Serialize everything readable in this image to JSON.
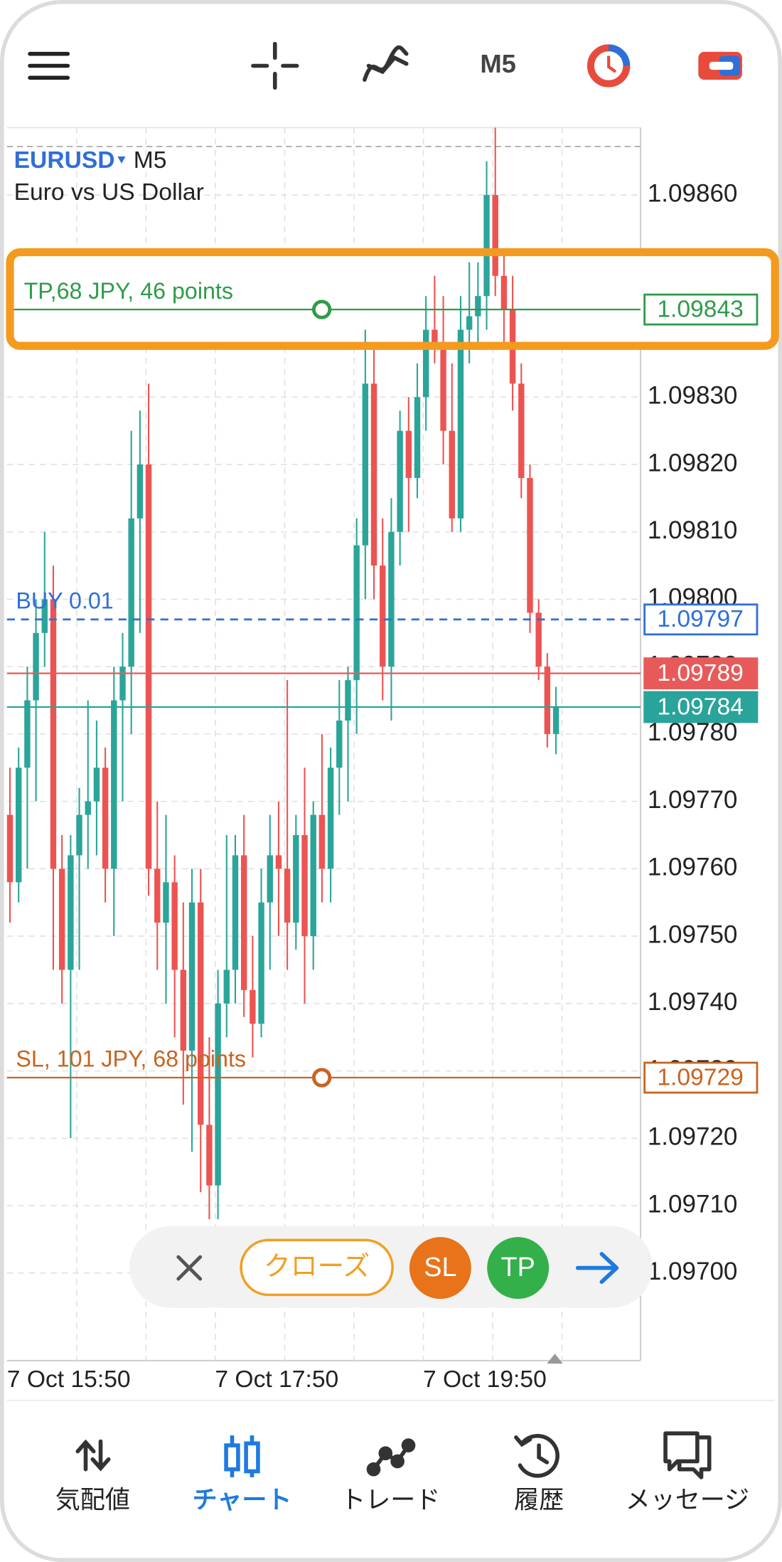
{
  "toolbar": {
    "timeframe": "M5"
  },
  "chart_data": {
    "type": "candlestick",
    "symbol": "EURUSD",
    "timeframe": "M5",
    "description": "Euro vs US Dollar",
    "categories": [
      "7 Oct 15:50",
      null,
      null,
      null,
      null,
      null,
      null,
      null,
      null,
      null,
      null,
      null,
      null,
      null,
      null,
      null,
      null,
      null,
      null,
      null,
      null,
      null,
      null,
      null,
      "7 Oct 17:50",
      null,
      null,
      null,
      null,
      null,
      null,
      null,
      null,
      null,
      null,
      null,
      null,
      null,
      null,
      null,
      null,
      null,
      null,
      null,
      null,
      null,
      null,
      null,
      "7 Oct 19:50",
      null,
      null,
      null,
      null,
      null,
      null,
      null,
      null,
      null,
      null,
      null,
      null,
      null,
      null,
      null
    ],
    "open": [
      1.09768,
      1.09758,
      1.09775,
      1.09785,
      1.09795,
      1.098,
      1.0976,
      1.09745,
      1.09762,
      1.09768,
      1.0977,
      1.09775,
      1.0976,
      1.09785,
      1.0979,
      1.09812,
      1.0982,
      1.0976,
      1.09752,
      1.09758,
      1.09745,
      1.09733,
      1.09755,
      1.09722,
      1.09713,
      1.0974,
      1.09745,
      1.09762,
      1.09742,
      1.09737,
      1.09755,
      1.09762,
      1.0976,
      1.09752,
      1.09765,
      1.0975,
      1.09768,
      1.0976,
      1.09775,
      1.09782,
      1.09788,
      1.09808,
      1.09832,
      1.09805,
      1.0979,
      1.0981,
      1.09825,
      1.09818,
      1.0983,
      1.0984,
      1.09838,
      1.09825,
      1.09812,
      1.0984,
      1.09842,
      1.09845,
      1.0986,
      1.09848,
      1.09843,
      1.09832,
      1.09818,
      1.09798,
      1.0979,
      1.0978
    ],
    "high": [
      1.09775,
      1.09778,
      1.0979,
      1.098,
      1.0981,
      1.09805,
      1.09765,
      1.09765,
      1.09772,
      1.09785,
      1.09782,
      1.09778,
      1.0979,
      1.09795,
      1.09825,
      1.09828,
      1.09832,
      1.0977,
      1.09768,
      1.09762,
      1.09755,
      1.0976,
      1.0976,
      1.09735,
      1.09745,
      1.09765,
      1.09765,
      1.09768,
      1.0975,
      1.0976,
      1.09768,
      1.0977,
      1.09788,
      1.09768,
      1.09775,
      1.0977,
      1.0978,
      1.09778,
      1.09788,
      1.0979,
      1.09812,
      1.0984,
      1.09838,
      1.09812,
      1.09815,
      1.09828,
      1.0983,
      1.09835,
      1.09845,
      1.09848,
      1.09845,
      1.09835,
      1.09845,
      1.0985,
      1.0985,
      1.09865,
      1.0987,
      1.09852,
      1.09848,
      1.09835,
      1.0982,
      1.098,
      1.09792,
      1.09787
    ],
    "low": [
      1.09752,
      1.09755,
      1.0976,
      1.0977,
      1.0979,
      1.09745,
      1.0974,
      1.0972,
      1.09745,
      1.0976,
      1.09762,
      1.09755,
      1.0975,
      1.0977,
      1.0978,
      1.09795,
      1.09756,
      1.09745,
      1.0974,
      1.09735,
      1.09725,
      1.09718,
      1.09712,
      1.09708,
      1.09708,
      1.09735,
      1.0974,
      1.09738,
      1.09732,
      1.09735,
      1.09745,
      1.0975,
      1.09745,
      1.09748,
      1.0974,
      1.09745,
      1.09755,
      1.09755,
      1.09768,
      1.0977,
      1.0978,
      1.098,
      1.098,
      1.09785,
      1.09782,
      1.09805,
      1.0981,
      1.09815,
      1.09825,
      1.09835,
      1.0982,
      1.0981,
      1.0981,
      1.09835,
      1.09838,
      1.0984,
      1.09845,
      1.09838,
      1.09828,
      1.09815,
      1.09795,
      1.09788,
      1.09778,
      1.09777
    ],
    "close": [
      1.09758,
      1.09775,
      1.09785,
      1.09795,
      1.098,
      1.0976,
      1.09745,
      1.09762,
      1.09768,
      1.0977,
      1.09775,
      1.0976,
      1.09785,
      1.0979,
      1.09812,
      1.0982,
      1.0976,
      1.09752,
      1.09758,
      1.09745,
      1.09733,
      1.09755,
      1.09722,
      1.09713,
      1.0974,
      1.09745,
      1.09762,
      1.09742,
      1.09737,
      1.09755,
      1.09762,
      1.0976,
      1.09752,
      1.09765,
      1.0975,
      1.09768,
      1.0976,
      1.09775,
      1.09782,
      1.09788,
      1.09808,
      1.09832,
      1.09805,
      1.0979,
      1.0981,
      1.09825,
      1.09818,
      1.0983,
      1.0984,
      1.09838,
      1.09825,
      1.09812,
      1.0984,
      1.09842,
      1.09845,
      1.0986,
      1.09848,
      1.09843,
      1.09832,
      1.09818,
      1.09798,
      1.0979,
      1.0978,
      1.09784
    ],
    "up_color": "#2ba59a",
    "down_color": "#ec5452",
    "ylim": [
      1.09687,
      1.0987
    ],
    "yticks": [
      {
        "value": 1.097,
        "label": "1.09700"
      },
      {
        "value": 1.0971,
        "label": "1.09710"
      },
      {
        "value": 1.0972,
        "label": "1.09720"
      },
      {
        "value": 1.0973,
        "label": "1.09730"
      },
      {
        "value": 1.0974,
        "label": "1.09740"
      },
      {
        "value": 1.0975,
        "label": "1.09750"
      },
      {
        "value": 1.0976,
        "label": "1.09760"
      },
      {
        "value": 1.0977,
        "label": "1.09770"
      },
      {
        "value": 1.0978,
        "label": "1.09780"
      },
      {
        "value": 1.0979,
        "label": "1.09790"
      },
      {
        "value": 1.098,
        "label": "1.09800"
      },
      {
        "value": 1.0981,
        "label": "1.09810"
      },
      {
        "value": 1.0982,
        "label": "1.09820"
      },
      {
        "value": 1.0983,
        "label": "1.09830"
      },
      {
        "value": 1.0984,
        "label": "1.09840"
      },
      {
        "value": 1.0985,
        "label": "1.09850"
      },
      {
        "value": 1.0986,
        "label": "1.09860"
      }
    ],
    "grid": true,
    "levels": [
      {
        "text": "TP,68 JPY, 46 points",
        "value": 1.09843,
        "label": "1.09843",
        "color": "#2e9c4a",
        "style": "solid",
        "tag": "outline",
        "handle": true
      },
      {
        "text": "BUY 0.01",
        "value": 1.09797,
        "label": "1.09797",
        "color": "#2f6fd6",
        "style": "dashed",
        "tag": "outline",
        "handle": false
      },
      {
        "value": 1.09789,
        "label": "1.09789",
        "color": "#e85a5a",
        "style": "solid",
        "tag": "filled",
        "handle": false
      },
      {
        "value": 1.09784,
        "label": "1.09784",
        "color": "#2aa39a",
        "style": "solid",
        "tag": "filled",
        "handle": false
      },
      {
        "text": "SL, 101 JPY, 68 points",
        "value": 1.09729,
        "label": "1.09729",
        "color": "#c8641f",
        "style": "solid",
        "tag": "outline",
        "handle": true
      }
    ]
  },
  "trade_panel": {
    "close": "クローズ",
    "sl": "SL",
    "tp": "TP"
  },
  "nav": [
    "気配値",
    "チャート",
    "トレード",
    "履歴",
    "メッセージ"
  ]
}
